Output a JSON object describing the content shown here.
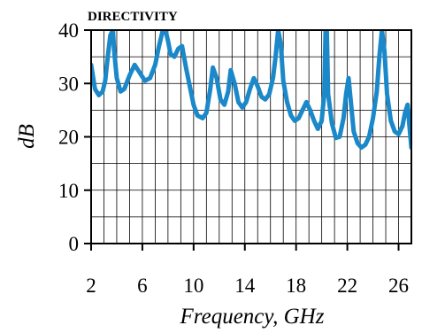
{
  "chart_data": {
    "type": "line",
    "title": "DIRECTIVITY",
    "xlabel": "Frequency, GHz",
    "ylabel": "dB",
    "xlim": [
      2,
      27
    ],
    "ylim": [
      0,
      40
    ],
    "x_ticks": [
      2,
      6,
      10,
      14,
      18,
      22,
      26
    ],
    "y_ticks": [
      0,
      10,
      20,
      30,
      40
    ],
    "x_minor_grid": [
      2,
      3,
      4,
      5,
      6,
      7,
      8,
      9,
      10,
      11,
      12,
      13,
      14,
      15,
      16,
      17,
      18,
      19,
      20,
      21,
      22,
      23,
      24,
      25,
      26,
      27
    ],
    "y_minor_grid": [
      0,
      5,
      10,
      15,
      20,
      25,
      30,
      35,
      40
    ],
    "grid": true,
    "line_color": "#1a88c9",
    "series": [
      {
        "x": [
          2.0,
          2.3,
          2.6,
          2.9,
          3.1,
          3.3,
          3.5,
          3.7,
          3.8,
          4.0,
          4.3,
          4.6,
          5.0,
          5.4,
          5.8,
          6.2,
          6.6,
          7.0,
          7.3,
          7.6,
          7.8,
          8.0,
          8.2,
          8.5,
          8.8,
          9.1,
          9.4,
          9.7,
          10.0,
          10.3,
          10.7,
          11.0,
          11.3,
          11.5,
          11.8,
          12.1,
          12.4,
          12.7,
          12.9,
          13.2,
          13.5,
          13.8,
          14.1,
          14.4,
          14.7,
          15.0,
          15.3,
          15.6,
          15.9,
          16.2,
          16.4,
          16.6,
          16.8,
          17.0,
          17.3,
          17.6,
          17.9,
          18.2,
          18.5,
          18.8,
          19.1,
          19.4,
          19.7,
          20.0,
          20.2,
          20.3,
          20.4,
          20.5,
          20.8,
          21.1,
          21.4,
          21.7,
          21.9,
          22.1,
          22.3,
          22.5,
          22.8,
          23.1,
          23.4,
          23.7,
          24.0,
          24.3,
          24.5,
          24.7,
          24.9,
          25.1,
          25.4,
          25.7,
          26.0,
          26.3,
          26.5,
          26.7,
          27.0
        ],
        "y": [
          33.5,
          29.0,
          27.8,
          28.5,
          30.5,
          35.0,
          39.0,
          40.0,
          36.0,
          31.0,
          28.5,
          29.0,
          31.5,
          33.5,
          32.0,
          30.5,
          31.0,
          33.5,
          37.0,
          40.0,
          40.0,
          38.0,
          35.5,
          35.0,
          36.5,
          37.0,
          33.0,
          29.5,
          26.0,
          24.0,
          23.5,
          24.5,
          29.0,
          33.0,
          31.0,
          27.0,
          26.0,
          28.5,
          32.5,
          30.0,
          26.5,
          25.5,
          26.5,
          29.0,
          31.0,
          29.5,
          27.5,
          27.0,
          28.0,
          31.0,
          35.0,
          40.0,
          37.5,
          30.5,
          26.5,
          24.0,
          23.0,
          23.5,
          25.0,
          26.5,
          25.0,
          23.0,
          21.5,
          23.0,
          28.0,
          40.0,
          40.0,
          28.0,
          22.5,
          19.8,
          20.0,
          23.5,
          28.0,
          31.0,
          26.0,
          21.0,
          18.8,
          18.0,
          18.5,
          20.0,
          23.5,
          28.5,
          35.0,
          40.0,
          36.0,
          28.0,
          23.0,
          21.0,
          20.5,
          22.0,
          24.5,
          26.0,
          18.0
        ]
      }
    ]
  }
}
